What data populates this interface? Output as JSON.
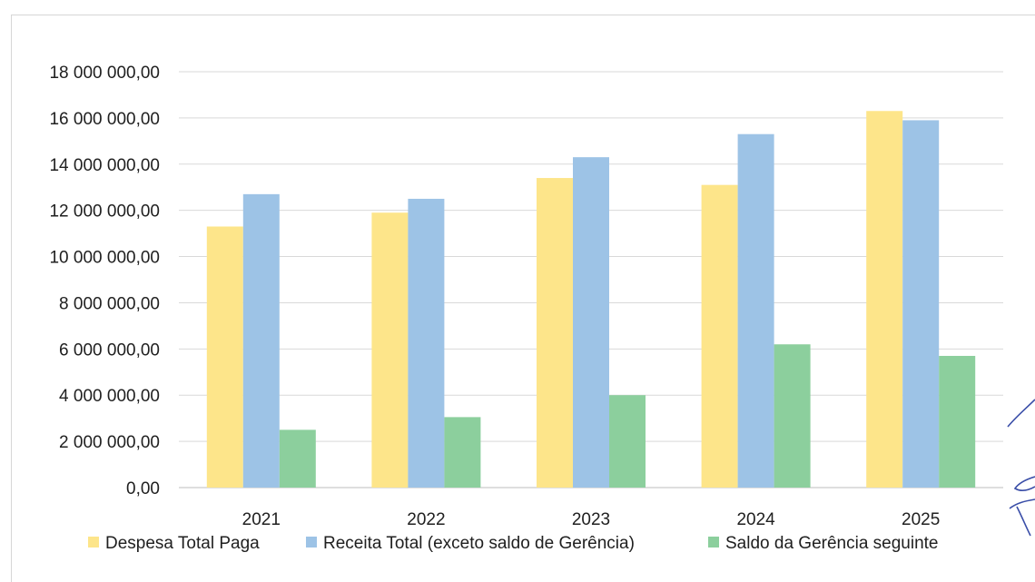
{
  "chart_data": {
    "type": "bar",
    "categories": [
      "2021",
      "2022",
      "2023",
      "2024",
      "2025"
    ],
    "series": [
      {
        "name": "Despesa Total Paga",
        "color": "#fde58a",
        "values": [
          11300000,
          11900000,
          13400000,
          13100000,
          16300000
        ]
      },
      {
        "name": "Receita Total (exceto saldo de Gerência)",
        "color": "#9dc3e6",
        "values": [
          12700000,
          12500000,
          14300000,
          15300000,
          15900000
        ]
      },
      {
        "name": "Saldo da Gerência seguinte",
        "color": "#8ccf9d",
        "values": [
          2500000,
          3050000,
          4000000,
          6200000,
          5700000
        ]
      }
    ],
    "y_ticks": [
      "0,00",
      "2 000 000,00",
      "4 000 000,00",
      "6 000 000,00",
      "8 000 000,00",
      "10 000 000,00",
      "12 000 000,00",
      "14 000 000,00",
      "16 000 000,00",
      "18 000 000,00"
    ],
    "ylim": [
      0,
      18000000
    ],
    "grid": true,
    "legend_position": "bottom",
    "title": "",
    "xlabel": "",
    "ylabel": ""
  }
}
